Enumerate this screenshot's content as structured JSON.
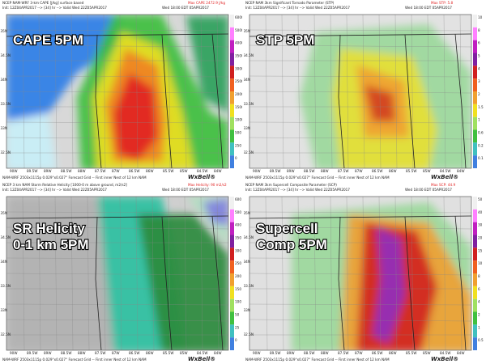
{
  "panels": [
    {
      "label": [
        "CAPE 5PM"
      ],
      "header": "NCEP NAM-WRF 3-km CAPE [J/kg] surface based",
      "init": "Init: 12Z04APR2017 --> [34] hr --> Valid Wed 22Z05APR2017",
      "max": "Max CAPE 2472.9 J/kg",
      "local": "Wed 18:00 EDT 05APR2017",
      "scale": [
        "6000",
        "5000",
        "4000",
        "3500",
        "3000",
        "2500",
        "2000",
        "1500",
        "1000",
        "500",
        "250",
        "0"
      ]
    },
    {
      "label": [
        "STP 5PM"
      ],
      "header": "NCEP NAM 3km Significant Tornado Parameter (STP)",
      "init": "Init: 12Z04APR2017 --> [34] hr --> Valid Wed 22Z05APR2017",
      "max": "Max STP: 5.8",
      "local": "Wed 18:00 EDT 05APR2017",
      "scale": [
        "10",
        "8",
        "6",
        "5",
        "4",
        "3",
        "2",
        "1.5",
        "1",
        "0.6",
        "0.2",
        "0.1"
      ]
    },
    {
      "label": [
        "SR Helicity",
        "0-1 km 5PM"
      ],
      "header": "NCEP 3 km NAM Storm Relative Helicity [1000-0 m above ground, m2/s2]",
      "init": "Init: 12Z04APR2017 --> [34] hr --> Valid Wed 22Z05APR2017",
      "max": "Max Helicity: 90 m2/s2",
      "local": "Wed 18:00 EDT 05APR2017",
      "scale": [
        "600",
        "500",
        "400",
        "350",
        "300",
        "250",
        "200",
        "150",
        "100",
        "50",
        "25",
        "0"
      ]
    },
    {
      "label": [
        "Supercell",
        "Comp 5PM"
      ],
      "header": "NCEP NAM 3km Supercell Composite Parameter (SCP)",
      "init": "Init: 12Z04APR2017 --> [34] hr --> Valid Wed 22Z05APR2017",
      "max": "Max SCP: 44.9",
      "local": "Wed 18:00 EDT 05APR2017",
      "scale": [
        "50",
        "40",
        "30",
        "20",
        "15",
        "10",
        "8",
        "6",
        "4",
        "2",
        "1",
        "0.5"
      ]
    }
  ],
  "footer": "NAM-WRF 2503x1115p 0.029°x0.027° Forecast Grid -- First inner Nest of 12 km NAM",
  "brand": "WxBell®",
  "lat_labels": [
    "35N",
    "34.5N",
    "34N",
    "33.5N",
    "33N",
    "32.5N"
  ],
  "lon_labels": [
    "90W",
    "89.5W",
    "89W",
    "88.5W",
    "88W",
    "87.5W",
    "87W",
    "86.5W",
    "86W",
    "85.5W",
    "85W",
    "84.5W",
    "84W"
  ]
}
